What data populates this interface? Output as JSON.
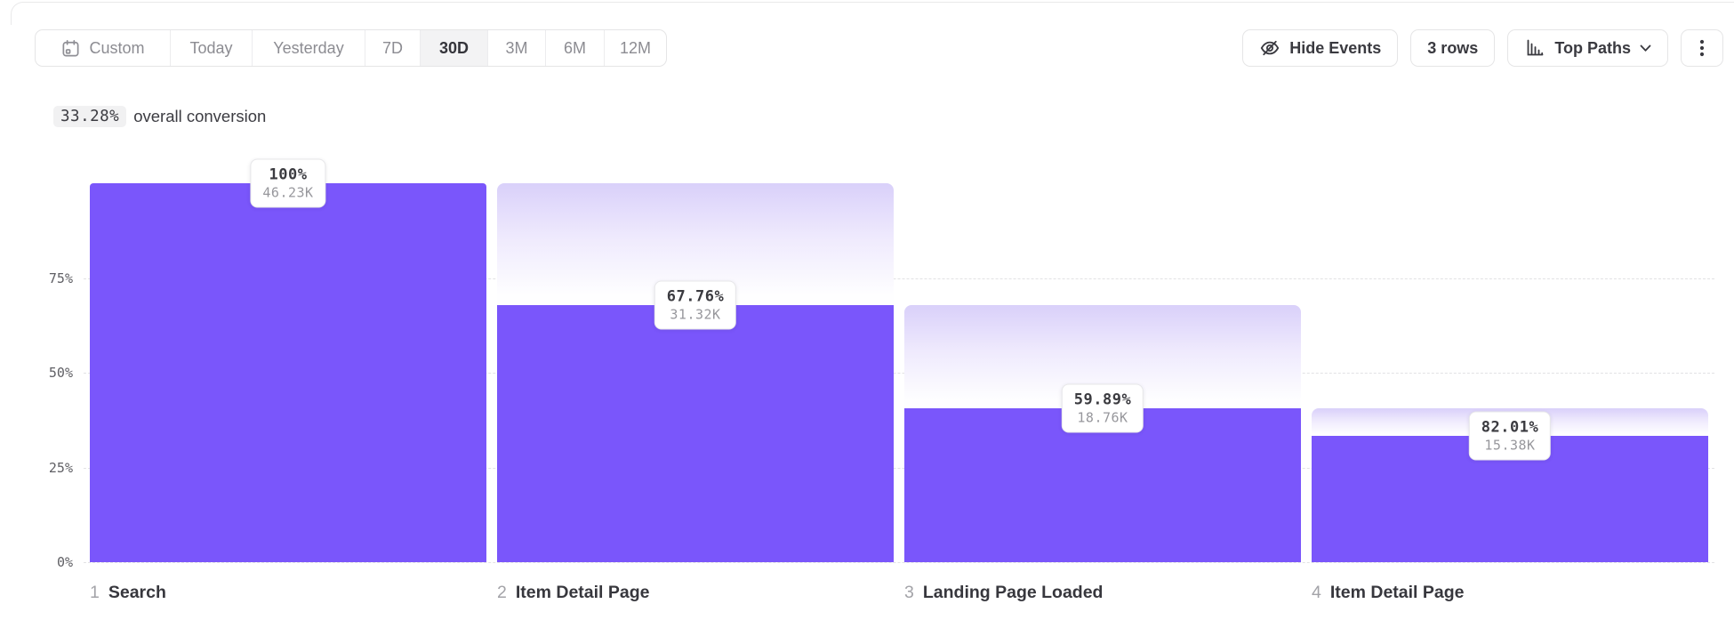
{
  "header": {
    "date_ranges": [
      {
        "label": "Custom",
        "selected": false,
        "icon": "calendar"
      },
      {
        "label": "Today",
        "selected": false
      },
      {
        "label": "Yesterday",
        "selected": false
      },
      {
        "label": "7D",
        "selected": false
      },
      {
        "label": "30D",
        "selected": true
      },
      {
        "label": "3M",
        "selected": false
      },
      {
        "label": "6M",
        "selected": false
      },
      {
        "label": "12M",
        "selected": false
      }
    ],
    "hide_events_label": "Hide Events",
    "rows_label": "3 rows",
    "top_paths_label": "Top Paths"
  },
  "summary": {
    "conversion_value": "33.28%",
    "conversion_text": "overall conversion"
  },
  "chart_data": {
    "type": "bar",
    "subtype": "funnel",
    "title": "33.28% overall conversion",
    "categories": [
      "1 Search",
      "2 Item Detail Page",
      "3 Landing Page Loaded",
      "4 Item Detail Page"
    ],
    "steps": [
      {
        "index": "1",
        "name": "Search",
        "conversion_label": "100%",
        "count_label": "46.23K",
        "height_pct": 100,
        "prev_height_pct": 100
      },
      {
        "index": "2",
        "name": "Item Detail Page",
        "conversion_label": "67.76%",
        "count_label": "31.32K",
        "height_pct": 67.76,
        "prev_height_pct": 100
      },
      {
        "index": "3",
        "name": "Landing Page Loaded",
        "conversion_label": "59.89%",
        "count_label": "18.76K",
        "height_pct": 40.58,
        "prev_height_pct": 67.76
      },
      {
        "index": "4",
        "name": "Item Detail Page",
        "conversion_label": "82.01%",
        "count_label": "15.38K",
        "height_pct": 33.27,
        "prev_height_pct": 40.58
      }
    ],
    "y_ticks": [
      {
        "label": "75%",
        "value": 75
      },
      {
        "label": "50%",
        "value": 50
      },
      {
        "label": "25%",
        "value": 25
      },
      {
        "label": "0%",
        "value": 0
      }
    ],
    "ylim": [
      0,
      100
    ],
    "grid": "dashed-horizontal",
    "legend": "none",
    "colors": {
      "bar": "#7a56fb",
      "gradient_top": "#d9d0fa",
      "gradient_bottom": "#fefeff"
    }
  }
}
